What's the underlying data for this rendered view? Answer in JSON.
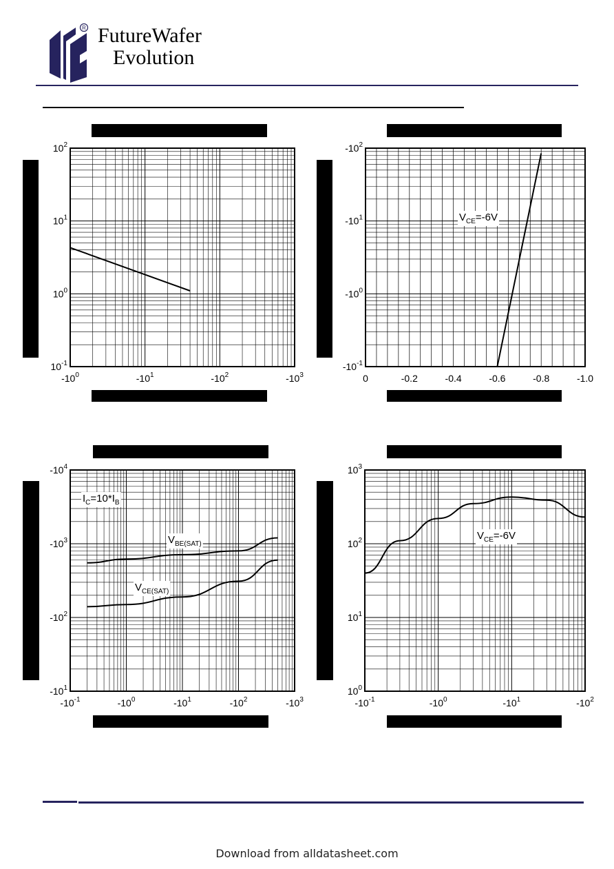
{
  "brand": {
    "line1": "FutureWafer",
    "line2": "Evolution",
    "registered": "R"
  },
  "footer": {
    "text": "Download from alldatasheet.com"
  },
  "chart_data": [
    {
      "type": "line",
      "xscale": "log",
      "yscale": "log",
      "xlim": [
        -1,
        -1000
      ],
      "ylim": [
        0.1,
        100
      ],
      "x_ticks": [
        {
          "base": "-10",
          "exp": "0"
        },
        {
          "base": "-10",
          "exp": "1"
        },
        {
          "base": "-10",
          "exp": "2"
        },
        {
          "base": "-10",
          "exp": "3"
        }
      ],
      "y_ticks": [
        {
          "base": "10",
          "exp": "-1"
        },
        {
          "base": "10",
          "exp": "0"
        },
        {
          "base": "10",
          "exp": "1"
        },
        {
          "base": "10",
          "exp": "2"
        }
      ],
      "series": [
        {
          "x": [
            -1,
            -40
          ],
          "y": [
            4.3,
            1.1
          ]
        }
      ],
      "annotations": [],
      "grid": true
    },
    {
      "type": "line",
      "xscale": "linear",
      "yscale": "log",
      "xlim": [
        0,
        -1.0
      ],
      "ylim": [
        -0.1,
        -100
      ],
      "x_ticks": [
        {
          "base": "0",
          "exp": ""
        },
        {
          "base": "-0.2",
          "exp": ""
        },
        {
          "base": "-0.4",
          "exp": ""
        },
        {
          "base": "-0.6",
          "exp": ""
        },
        {
          "base": "-0.8",
          "exp": ""
        },
        {
          "base": "-1.0",
          "exp": ""
        }
      ],
      "y_ticks": [
        {
          "base": "-10",
          "exp": "-1"
        },
        {
          "base": "-10",
          "exp": "0"
        },
        {
          "base": "-10",
          "exp": "1"
        },
        {
          "base": "-10",
          "exp": "2"
        }
      ],
      "series": [
        {
          "x": [
            -0.6,
            -0.8
          ],
          "y": [
            -0.1,
            -85
          ]
        }
      ],
      "annotations": [
        {
          "main": "V",
          "sub": "CE",
          "rest": "=-6V"
        }
      ],
      "grid": true
    },
    {
      "type": "line",
      "xscale": "log",
      "yscale": "log",
      "xlim": [
        -0.1,
        -1000
      ],
      "ylim": [
        -10,
        -10000
      ],
      "x_ticks": [
        {
          "base": "-10",
          "exp": "-1"
        },
        {
          "base": "-10",
          "exp": "0"
        },
        {
          "base": "-10",
          "exp": "1"
        },
        {
          "base": "-10",
          "exp": "2"
        },
        {
          "base": "-10",
          "exp": "3"
        }
      ],
      "y_ticks": [
        {
          "base": "-10",
          "exp": "1"
        },
        {
          "base": "-10",
          "exp": "2"
        },
        {
          "base": "-10",
          "exp": "3"
        },
        {
          "base": "-10",
          "exp": "4"
        }
      ],
      "series": [
        {
          "x": [
            -0.2,
            -1,
            -10,
            -100,
            -500
          ],
          "y": [
            -550,
            -620,
            -710,
            -800,
            -1200
          ]
        },
        {
          "x": [
            -0.2,
            -1,
            -10,
            -100,
            -500
          ],
          "y": [
            -140,
            -150,
            -190,
            -310,
            -600
          ]
        }
      ],
      "annotations": [
        {
          "main": "I",
          "sub": "C",
          "rest": "=10*I",
          "sub2": "B"
        },
        {
          "main": "V",
          "sub": "BE(SAT)",
          "rest": ""
        },
        {
          "main": "V",
          "sub": "CE(SAT)",
          "rest": ""
        }
      ],
      "grid": true
    },
    {
      "type": "line",
      "xscale": "log",
      "yscale": "log",
      "xlim": [
        -0.1,
        -100
      ],
      "ylim": [
        1,
        1000
      ],
      "x_ticks": [
        {
          "base": "-10",
          "exp": "-1"
        },
        {
          "base": "-10",
          "exp": "0"
        },
        {
          "base": "-10",
          "exp": "1"
        },
        {
          "base": "-10",
          "exp": "2"
        }
      ],
      "y_ticks": [
        {
          "base": "10",
          "exp": "0"
        },
        {
          "base": "10",
          "exp": "1"
        },
        {
          "base": "10",
          "exp": "2"
        },
        {
          "base": "10",
          "exp": "3"
        }
      ],
      "series": [
        {
          "x": [
            -0.1,
            -0.3,
            -1,
            -3,
            -10,
            -30,
            -100
          ],
          "y": [
            40,
            110,
            220,
            350,
            430,
            390,
            230
          ]
        }
      ],
      "annotations": [
        {
          "main": "V",
          "sub": "CE",
          "rest": "=-6V"
        }
      ],
      "grid": true
    }
  ]
}
